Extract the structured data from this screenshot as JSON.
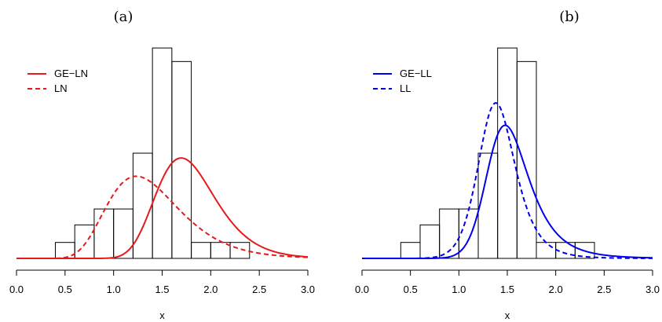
{
  "chart_data": [
    {
      "type": "histogram",
      "panel_label": "(a)",
      "xlabel": "x",
      "xlim": [
        0.0,
        3.0
      ],
      "x_ticks": [
        "0.0",
        "0.5",
        "1.0",
        "1.5",
        "2.0",
        "2.5",
        "3.0"
      ],
      "histogram": {
        "bin_edges": [
          0.4,
          0.6,
          0.8,
          1.0,
          1.2,
          1.4,
          1.6,
          1.8,
          2.0,
          2.2,
          2.4
        ],
        "heights": [
          0.2,
          0.42,
          0.62,
          0.62,
          1.32,
          2.64,
          2.47,
          0.2,
          0.2,
          0.2
        ]
      },
      "legend_position": "top-left",
      "series": [
        {
          "name": "GE−LN",
          "style": "solid",
          "color": "#e41a1c",
          "curve": "gelnorm",
          "params": {
            "mu": 0.43,
            "sigma": 0.23,
            "alpha": 2.2
          }
        },
        {
          "name": "LN",
          "style": "dashed",
          "color": "#e41a1c",
          "curve": "lognorm",
          "params": {
            "mu": 0.3,
            "sigma": 0.3
          }
        }
      ]
    },
    {
      "type": "histogram",
      "panel_label": "(b)",
      "xlabel": "x",
      "xlim": [
        0.0,
        3.0
      ],
      "x_ticks": [
        "0.0",
        "0.5",
        "1.0",
        "1.5",
        "2.0",
        "2.5",
        "3.0"
      ],
      "histogram": {
        "bin_edges": [
          0.4,
          0.6,
          0.8,
          1.0,
          1.2,
          1.4,
          1.6,
          1.8,
          2.0,
          2.2,
          2.4
        ],
        "heights": [
          0.2,
          0.42,
          0.62,
          0.62,
          1.32,
          2.64,
          2.47,
          0.2,
          0.2,
          0.2
        ]
      },
      "legend_position": "top-left",
      "series": [
        {
          "name": "GE−LL",
          "style": "solid",
          "color": "#0000ee",
          "curve": "gelogis",
          "params": {
            "mu": 0.35,
            "s": 0.115,
            "alpha": 1.7
          }
        },
        {
          "name": "LL",
          "style": "dashed",
          "color": "#0000ee",
          "curve": "loglogis",
          "params": {
            "mu": 0.34,
            "s": 0.092
          }
        }
      ]
    }
  ]
}
